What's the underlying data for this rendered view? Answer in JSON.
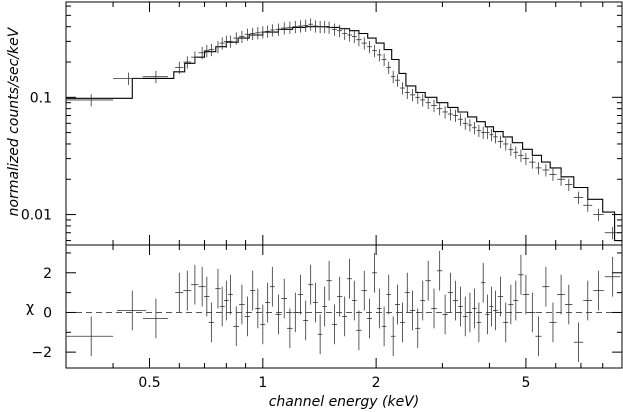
{
  "chart_data": [
    {
      "type": "line",
      "panel": "spectrum",
      "xlabel": "",
      "ylabel": "normalized counts/sec/keV",
      "xscale": "log",
      "yscale": "log",
      "xlim": [
        0.3,
        9.0
      ],
      "ylim": [
        0.0055,
        0.65
      ],
      "yticks": [
        0.1,
        0.01
      ],
      "ytick_labels": [
        "0.1",
        "0.01"
      ],
      "series": [
        {
          "style": "crosses",
          "x": [
            0.35,
            0.44,
            0.52,
            0.6,
            0.63,
            0.66,
            0.69,
            0.71,
            0.73,
            0.76,
            0.78,
            0.8,
            0.82,
            0.85,
            0.88,
            0.91,
            0.94,
            0.97,
            1.0,
            1.03,
            1.06,
            1.1,
            1.14,
            1.18,
            1.22,
            1.26,
            1.3,
            1.34,
            1.38,
            1.42,
            1.46,
            1.5,
            1.55,
            1.6,
            1.65,
            1.7,
            1.75,
            1.8,
            1.86,
            1.92,
            1.98,
            2.04,
            2.1,
            2.16,
            2.22,
            2.28,
            2.35,
            2.42,
            2.5,
            2.58,
            2.66,
            2.75,
            2.85,
            2.95,
            3.05,
            3.15,
            3.25,
            3.35,
            3.45,
            3.55,
            3.65,
            3.75,
            3.85,
            3.95,
            4.05,
            4.15,
            4.28,
            4.42,
            4.56,
            4.7,
            4.85,
            5.0,
            5.2,
            5.4,
            5.65,
            5.9,
            6.2,
            6.5,
            6.9,
            7.3,
            7.8,
            8.5
          ],
          "y": [
            0.095,
            0.145,
            0.15,
            0.18,
            0.2,
            0.22,
            0.24,
            0.25,
            0.255,
            0.27,
            0.29,
            0.3,
            0.3,
            0.32,
            0.33,
            0.345,
            0.35,
            0.355,
            0.36,
            0.365,
            0.375,
            0.38,
            0.39,
            0.395,
            0.4,
            0.405,
            0.41,
            0.42,
            0.405,
            0.4,
            0.4,
            0.395,
            0.38,
            0.37,
            0.35,
            0.34,
            0.33,
            0.31,
            0.29,
            0.27,
            0.25,
            0.23,
            0.21,
            0.18,
            0.15,
            0.14,
            0.12,
            0.11,
            0.105,
            0.1,
            0.095,
            0.09,
            0.085,
            0.08,
            0.075,
            0.072,
            0.07,
            0.065,
            0.06,
            0.058,
            0.055,
            0.052,
            0.05,
            0.05,
            0.048,
            0.046,
            0.042,
            0.04,
            0.036,
            0.034,
            0.032,
            0.03,
            0.028,
            0.025,
            0.024,
            0.022,
            0.02,
            0.018,
            0.014,
            0.012,
            0.01,
            0.007
          ],
          "xerr": [
            0.05,
            0.04,
            0.04,
            0.015,
            0.015,
            0.015,
            0.015,
            0.012,
            0.012,
            0.012,
            0.012,
            0.012,
            0.012,
            0.015,
            0.015,
            0.015,
            0.015,
            0.015,
            0.015,
            0.015,
            0.015,
            0.02,
            0.02,
            0.02,
            0.02,
            0.02,
            0.02,
            0.02,
            0.02,
            0.02,
            0.02,
            0.025,
            0.025,
            0.025,
            0.025,
            0.025,
            0.025,
            0.03,
            0.03,
            0.03,
            0.03,
            0.03,
            0.03,
            0.03,
            0.03,
            0.035,
            0.035,
            0.035,
            0.04,
            0.04,
            0.04,
            0.045,
            0.05,
            0.05,
            0.05,
            0.05,
            0.05,
            0.05,
            0.05,
            0.05,
            0.05,
            0.05,
            0.05,
            0.05,
            0.05,
            0.06,
            0.07,
            0.07,
            0.07,
            0.07,
            0.08,
            0.1,
            0.1,
            0.1,
            0.12,
            0.13,
            0.15,
            0.15,
            0.2,
            0.2,
            0.25,
            0.4
          ],
          "yerr_frac": 0.12
        },
        {
          "style": "step",
          "x": [
            0.3,
            0.45,
            0.58,
            0.62,
            0.66,
            0.7,
            0.75,
            0.8,
            0.86,
            0.92,
            1.0,
            1.1,
            1.2,
            1.3,
            1.4,
            1.5,
            1.6,
            1.7,
            1.8,
            1.9,
            2.0,
            2.1,
            2.2,
            2.3,
            2.4,
            2.55,
            2.7,
            2.9,
            3.1,
            3.3,
            3.5,
            3.7,
            3.9,
            4.1,
            4.35,
            4.6,
            4.9,
            5.2,
            5.5,
            5.8,
            6.2,
            6.7,
            7.3,
            8.0,
            8.6,
            9.0
          ],
          "y": [
            0.098,
            0.145,
            0.165,
            0.195,
            0.22,
            0.245,
            0.27,
            0.295,
            0.32,
            0.34,
            0.36,
            0.38,
            0.395,
            0.4,
            0.4,
            0.395,
            0.385,
            0.37,
            0.35,
            0.32,
            0.29,
            0.255,
            0.21,
            0.16,
            0.125,
            0.11,
            0.1,
            0.09,
            0.082,
            0.075,
            0.068,
            0.062,
            0.056,
            0.051,
            0.046,
            0.041,
            0.036,
            0.032,
            0.028,
            0.025,
            0.021,
            0.017,
            0.0135,
            0.0105,
            0.006,
            0.006
          ]
        }
      ]
    },
    {
      "type": "scatter",
      "panel": "residuals",
      "xlabel": "channel energy (keV)",
      "ylabel": "χ",
      "xscale": "log",
      "xlim": [
        0.3,
        9.0
      ],
      "ylim": [
        -2.8,
        3.4
      ],
      "xticks": [
        0.5,
        1,
        2,
        5
      ],
      "xtick_labels": [
        "0.5",
        "1",
        "2",
        "5"
      ],
      "yticks": [
        2,
        0,
        -2
      ],
      "ytick_labels": [
        "2",
        "0",
        "−2"
      ],
      "zero_line": "dashed",
      "series": [
        {
          "style": "crosses",
          "x": [
            0.35,
            0.45,
            0.52,
            0.6,
            0.63,
            0.66,
            0.69,
            0.71,
            0.73,
            0.76,
            0.78,
            0.8,
            0.82,
            0.85,
            0.88,
            0.91,
            0.94,
            0.97,
            1.0,
            1.03,
            1.06,
            1.1,
            1.14,
            1.18,
            1.22,
            1.26,
            1.3,
            1.34,
            1.38,
            1.42,
            1.46,
            1.5,
            1.55,
            1.6,
            1.65,
            1.7,
            1.75,
            1.8,
            1.86,
            1.92,
            1.98,
            2.04,
            2.1,
            2.16,
            2.22,
            2.28,
            2.35,
            2.42,
            2.5,
            2.58,
            2.66,
            2.75,
            2.85,
            2.95,
            3.05,
            3.15,
            3.25,
            3.35,
            3.45,
            3.55,
            3.65,
            3.75,
            3.85,
            3.95,
            4.05,
            4.15,
            4.28,
            4.42,
            4.56,
            4.7,
            4.85,
            5.0,
            5.2,
            5.4,
            5.65,
            5.9,
            6.2,
            6.5,
            6.9,
            7.3,
            7.8,
            8.5
          ],
          "y": [
            -1.2,
            0.1,
            -0.3,
            1.0,
            1.1,
            1.4,
            1.3,
            0.8,
            -0.5,
            1.2,
            0.3,
            0.6,
            0.9,
            -0.7,
            0.4,
            -0.2,
            1.1,
            0.2,
            -0.6,
            0.5,
            1.3,
            -0.1,
            0.7,
            -0.8,
            0.0,
            0.9,
            -0.4,
            1.4,
            0.5,
            -1.1,
            0.3,
            1.6,
            -0.6,
            0.8,
            -0.2,
            1.7,
            0.6,
            -0.9,
            1.1,
            -0.3,
            2.0,
            0.2,
            -0.7,
            0.9,
            -1.2,
            0.4,
            -0.5,
            1.0,
            0.1,
            -0.8,
            0.6,
            1.6,
            0.2,
            2.1,
            -0.1,
            1.0,
            0.6,
            0.3,
            -0.2,
            0.0,
            0.2,
            -0.5,
            1.5,
            -0.1,
            0.3,
            0.1,
            0.8,
            -0.5,
            0.4,
            0.6,
            1.9,
            0.9,
            0.0,
            -1.2,
            1.3,
            -0.5,
            0.9,
            0.4,
            -1.5,
            0.6,
            1.1,
            1.8
          ],
          "xerr": [
            0.05,
            0.04,
            0.04,
            0.015,
            0.015,
            0.015,
            0.015,
            0.012,
            0.012,
            0.012,
            0.012,
            0.012,
            0.012,
            0.015,
            0.015,
            0.015,
            0.015,
            0.015,
            0.015,
            0.015,
            0.015,
            0.02,
            0.02,
            0.02,
            0.02,
            0.02,
            0.02,
            0.02,
            0.02,
            0.02,
            0.02,
            0.025,
            0.025,
            0.025,
            0.025,
            0.025,
            0.025,
            0.03,
            0.03,
            0.03,
            0.03,
            0.03,
            0.03,
            0.03,
            0.03,
            0.035,
            0.035,
            0.035,
            0.04,
            0.04,
            0.04,
            0.045,
            0.05,
            0.05,
            0.05,
            0.05,
            0.05,
            0.05,
            0.05,
            0.05,
            0.05,
            0.05,
            0.05,
            0.05,
            0.05,
            0.06,
            0.07,
            0.07,
            0.07,
            0.07,
            0.08,
            0.1,
            0.1,
            0.1,
            0.12,
            0.13,
            0.15,
            0.15,
            0.2,
            0.2,
            0.25,
            0.4
          ],
          "yerr": 1.0
        }
      ]
    }
  ]
}
